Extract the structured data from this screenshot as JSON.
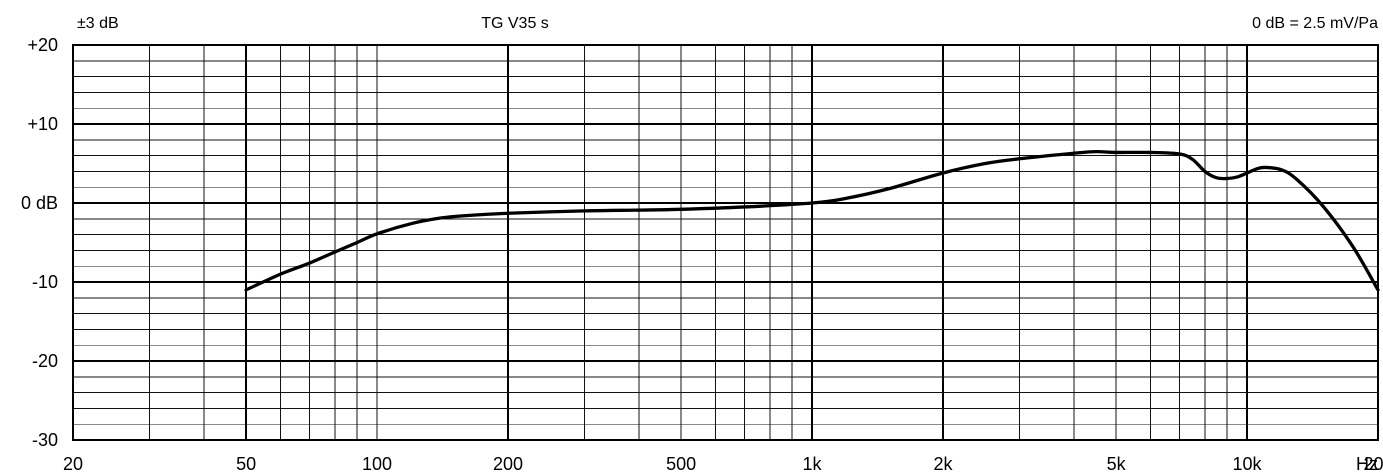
{
  "header": {
    "tolerance": "±3 dB",
    "model": "TG V35 s",
    "reference": "0 dB = 2.5 mV/Pa"
  },
  "chart_data": {
    "type": "line",
    "x_scale": "log",
    "xlim": [
      20,
      20000
    ],
    "ylim": [
      -30,
      20
    ],
    "grid": true,
    "x_ticks": [
      {
        "value": 20,
        "label": "20"
      },
      {
        "value": 50,
        "label": "50"
      },
      {
        "value": 100,
        "label": "100"
      },
      {
        "value": 200,
        "label": "200"
      },
      {
        "value": 500,
        "label": "500"
      },
      {
        "value": 1000,
        "label": "1k"
      },
      {
        "value": 2000,
        "label": "2k"
      },
      {
        "value": 5000,
        "label": "5k"
      },
      {
        "value": 10000,
        "label": "10k"
      },
      {
        "value": 20000,
        "label": "20k"
      }
    ],
    "x_unit": "Hz",
    "y_ticks": [
      {
        "value": 20,
        "label": "+20"
      },
      {
        "value": 10,
        "label": "+10"
      },
      {
        "value": 0,
        "label": "0 dB"
      },
      {
        "value": -10,
        "label": "-10"
      },
      {
        "value": -20,
        "label": "-20"
      },
      {
        "value": -30,
        "label": "-30"
      }
    ],
    "series": [
      {
        "x": [
          50,
          60,
          70,
          80,
          90,
          100,
          120,
          140,
          160,
          200,
          300,
          400,
          500,
          700,
          1000,
          1200,
          1500,
          2000,
          2500,
          3000,
          4000,
          4500,
          5000,
          6000,
          7000,
          7500,
          8000,
          8500,
          9000,
          9500,
          10000,
          10500,
          11000,
          12000,
          13000,
          15000,
          17500,
          20000
        ],
        "y": [
          -11,
          -9,
          -7.6,
          -6.2,
          -5,
          -3.9,
          -2.6,
          -1.9,
          -1.6,
          -1.3,
          -1.0,
          -0.9,
          -0.8,
          -0.5,
          0,
          0.6,
          1.8,
          3.8,
          5.0,
          5.6,
          6.3,
          6.5,
          6.4,
          6.4,
          6.2,
          5.5,
          4.0,
          3.2,
          3.1,
          3.3,
          3.8,
          4.3,
          4.5,
          4.2,
          3.0,
          -0.5,
          -5.5,
          -11
        ]
      }
    ]
  }
}
